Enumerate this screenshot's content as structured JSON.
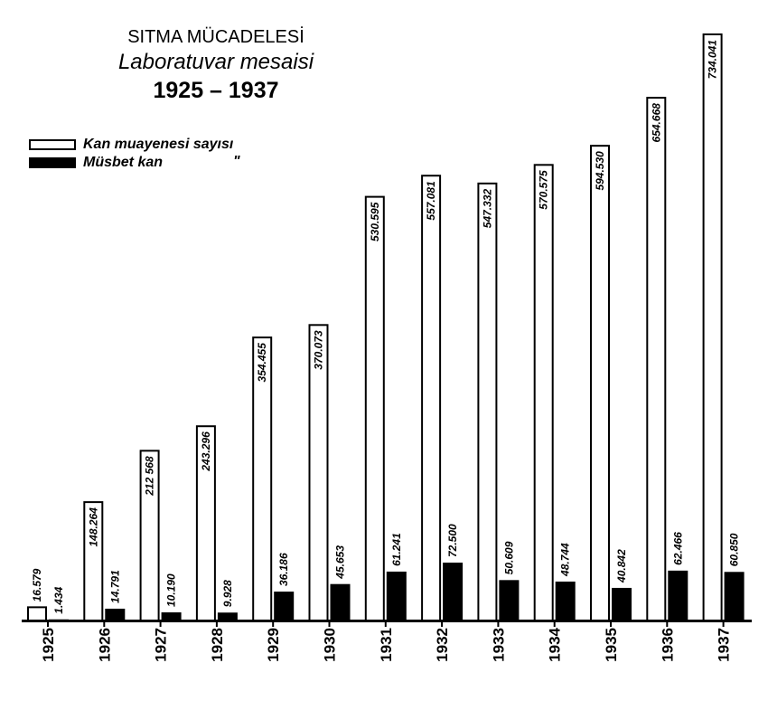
{
  "chart_data": {
    "type": "bar",
    "title": "SITMA MÜCADELESİ",
    "subtitle": "Laboratuvar mesaisi",
    "period": "1925 – 1937",
    "categories": [
      "1925",
      "1926",
      "1927",
      "1928",
      "1929",
      "1930",
      "1931",
      "1932",
      "1933",
      "1934",
      "1935",
      "1936",
      "1937"
    ],
    "series": [
      {
        "name": "Kan muayenesi sayısı",
        "fill": "#ffffff",
        "values": [
          16579,
          148264,
          212568,
          243296,
          354455,
          370073,
          530595,
          557081,
          547332,
          570575,
          594530,
          654668,
          734041
        ],
        "labels": [
          "16.579",
          "148.264",
          "212 568",
          "243.296",
          "354.455",
          "370.073",
          "530.595",
          "557.081",
          "547.332",
          "570.575",
          "594.530",
          "654.668",
          "734.041"
        ]
      },
      {
        "name": "Müsbet kan",
        "fill": "#000000",
        "values": [
          1434,
          14791,
          10190,
          9928,
          36186,
          45653,
          61241,
          72500,
          50609,
          48744,
          40842,
          62466,
          60850
        ],
        "labels": [
          "1.434",
          "14.791",
          "10.190",
          "9.928",
          "36.186",
          "45.653",
          "61.241",
          "72.500",
          "50.609",
          "48.744",
          "40.842",
          "62.466",
          "60.850"
        ]
      }
    ],
    "legend_ditto": "\"",
    "legend": "top-left",
    "grid": false
  }
}
